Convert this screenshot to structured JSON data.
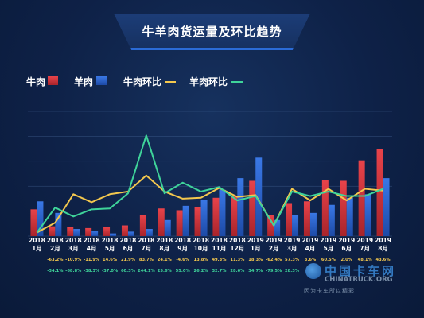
{
  "title": "牛羊肉货运量及环比趋势",
  "legend": {
    "beef": "牛肉",
    "mutton": "羊肉",
    "beef_mom": "牛肉环比",
    "mutton_mom": "羊肉环比"
  },
  "colors": {
    "beef_bar": "#e8434a",
    "mutton_bar": "#3a78e6",
    "beef_line": "#f4c84e",
    "mutton_line": "#3fd49a",
    "beef_pct": "#f4c84e",
    "mutton_pct": "#3fd49a"
  },
  "chart_data": {
    "type": "bar",
    "categories": [
      [
        "2018",
        "1月"
      ],
      [
        "2018",
        "2月"
      ],
      [
        "2018",
        "3月"
      ],
      [
        "2018",
        "4月"
      ],
      [
        "2018",
        "5月"
      ],
      [
        "2018",
        "6月"
      ],
      [
        "2018",
        "7月"
      ],
      [
        "2018",
        "8月"
      ],
      [
        "2018",
        "9月"
      ],
      [
        "2018",
        "10月"
      ],
      [
        "2018",
        "11月"
      ],
      [
        "2018",
        "12月"
      ],
      [
        "2019",
        "1月"
      ],
      [
        "2019",
        "2月"
      ],
      [
        "2019",
        "3月"
      ],
      [
        "2019",
        "4月"
      ],
      [
        "2019",
        "5月"
      ],
      [
        "2019",
        "6月"
      ],
      [
        "2019",
        "7月"
      ],
      [
        "2019",
        "8月"
      ]
    ],
    "ylim": [
      0,
      140
    ],
    "grid": true,
    "legend_position": "top-left",
    "series": [
      {
        "name": "牛肉",
        "kind": "bar",
        "values": [
          30,
          11,
          10,
          9,
          10,
          12,
          24,
          31,
          29,
          33,
          43,
          45,
          62,
          24,
          37,
          39,
          63,
          62,
          85,
          98
        ]
      },
      {
        "name": "羊肉",
        "kind": "bar",
        "values": [
          39,
          26,
          8,
          6,
          3,
          5,
          8,
          18,
          34,
          41,
          52,
          65,
          88,
          18,
          24,
          26,
          35,
          43,
          47,
          65
        ]
      },
      {
        "name": "牛肉环比",
        "kind": "line",
        "values": [
          4,
          15,
          47,
          38,
          47,
          50,
          68,
          50,
          42,
          43,
          54,
          44,
          46,
          12,
          53,
          40,
          53,
          40,
          53,
          51
        ]
      },
      {
        "name": "羊肉环比",
        "kind": "line",
        "values": [
          4,
          32,
          22,
          30,
          31,
          48,
          113,
          48,
          60,
          50,
          55,
          40,
          45,
          12,
          50,
          45,
          50,
          45,
          45,
          53
        ]
      }
    ],
    "beef_mom_labels": [
      "",
      "-63.2%",
      "-10.9%",
      "-11.9%",
      "14.6%",
      "21.9%",
      "83.7%",
      "24.1%",
      "-4.6%",
      "13.8%",
      "49.3%",
      "11.3%",
      "18.3%",
      "-62.4%",
      "57.3%",
      "3.6%",
      "60.5%",
      "2.0%",
      "48.1%",
      "43.6%"
    ],
    "mutton_mom_labels": [
      "",
      "-34.1%",
      "-68.8%",
      "-38.3%",
      "-37.0%",
      "60.3%",
      "244.1%",
      "25.6%",
      "55.0%",
      "26.2%",
      "32.7%",
      "28.6%",
      "34.7%",
      "-79.5%",
      "28.3%",
      "",
      "",
      "",
      "",
      ""
    ]
  },
  "watermark": {
    "brand": "中国卡车网",
    "domain": "CHINATRUCK.ORG",
    "slogan": "因为卡车所以精彩"
  }
}
